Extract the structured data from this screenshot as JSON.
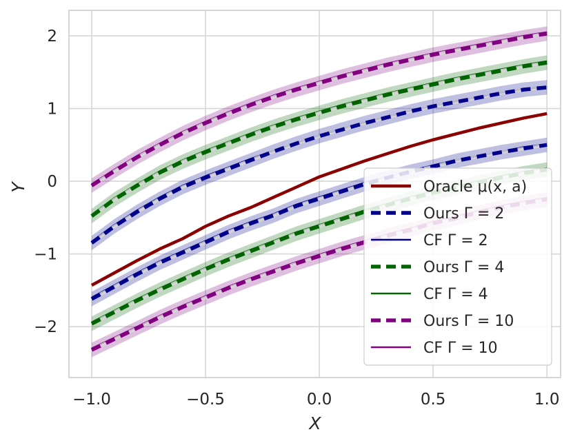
{
  "chart_data": {
    "type": "line",
    "title": "",
    "xlabel": "X",
    "ylabel": "Y",
    "xlim": [
      -1.1,
      1.06
    ],
    "ylim": [
      -2.7,
      2.35
    ],
    "grid": true,
    "xticks": [
      -1.0,
      -0.5,
      0.0,
      0.5,
      1.0
    ],
    "xtick_labels": [
      "−1.0",
      "−0.5",
      "0.0",
      "0.5",
      "1.0"
    ],
    "yticks": [
      -2,
      -1,
      0,
      1,
      2
    ],
    "ytick_labels": [
      "−2",
      "−1",
      "0",
      "1",
      "2"
    ],
    "x": [
      -1.0,
      -0.9,
      -0.8,
      -0.7,
      -0.6,
      -0.5,
      -0.4,
      -0.3,
      -0.2,
      -0.1,
      0.0,
      0.1,
      0.2,
      0.3,
      0.4,
      0.5,
      0.6,
      0.7,
      0.8,
      0.9,
      1.0
    ],
    "legend_position": "right",
    "series": [
      {
        "name": "Oracle μ(x, a)",
        "legend_label": "Oracle μ(x, a)",
        "role": "oracle",
        "color": "#8b0000",
        "style": "solid",
        "values": [
          -1.43,
          -1.26,
          -1.09,
          -0.93,
          -0.79,
          -0.62,
          -0.48,
          -0.36,
          -0.22,
          -0.08,
          0.06,
          0.17,
          0.28,
          0.38,
          0.48,
          0.57,
          0.65,
          0.73,
          0.8,
          0.87,
          0.93
        ]
      },
      {
        "name": "Ours Γ = 2 upper",
        "legend_label": "Ours Γ = 2",
        "role": "ours",
        "color": "#00008b",
        "style": "dashed",
        "values": [
          -0.85,
          -0.62,
          -0.42,
          -0.24,
          -0.08,
          0.05,
          0.17,
          0.29,
          0.41,
          0.52,
          0.62,
          0.71,
          0.8,
          0.88,
          0.96,
          1.03,
          1.09,
          1.15,
          1.21,
          1.26,
          1.29
        ]
      },
      {
        "name": "CF Γ = 2 upper",
        "legend_label": "CF Γ = 2",
        "role": "cf",
        "color": "#00008b",
        "style": "solid",
        "values": [
          -0.83,
          -0.6,
          -0.4,
          -0.22,
          -0.06,
          0.07,
          0.19,
          0.31,
          0.42,
          0.53,
          0.63,
          0.72,
          0.81,
          0.89,
          0.97,
          1.04,
          1.1,
          1.16,
          1.22,
          1.27,
          1.3
        ]
      },
      {
        "name": "Ours Γ = 2 lower",
        "legend_label": "",
        "role": "ours",
        "color": "#00008b",
        "style": "dashed",
        "values": [
          -1.62,
          -1.45,
          -1.28,
          -1.12,
          -0.98,
          -0.84,
          -0.7,
          -0.58,
          -0.47,
          -0.34,
          -0.24,
          -0.14,
          -0.04,
          0.05,
          0.13,
          0.2,
          0.28,
          0.34,
          0.4,
          0.45,
          0.5
        ]
      },
      {
        "name": "CF Γ = 2 lower",
        "legend_label": "",
        "role": "cf",
        "color": "#00008b",
        "style": "solid",
        "values": [
          -1.6,
          -1.43,
          -1.26,
          -1.1,
          -0.96,
          -0.82,
          -0.68,
          -0.56,
          -0.45,
          -0.32,
          -0.22,
          -0.12,
          -0.02,
          0.06,
          0.14,
          0.22,
          0.29,
          0.35,
          0.41,
          0.47,
          0.51
        ]
      },
      {
        "name": "Ours Γ = 4 upper",
        "legend_label": "Ours Γ = 4",
        "role": "ours",
        "color": "#006400",
        "style": "dashed",
        "values": [
          -0.48,
          -0.25,
          -0.06,
          0.12,
          0.27,
          0.4,
          0.52,
          0.64,
          0.75,
          0.85,
          0.94,
          1.03,
          1.11,
          1.19,
          1.26,
          1.33,
          1.4,
          1.46,
          1.52,
          1.58,
          1.63
        ]
      },
      {
        "name": "CF Γ = 4 upper",
        "legend_label": "CF Γ = 4",
        "role": "cf",
        "color": "#006400",
        "style": "solid",
        "values": [
          -0.46,
          -0.23,
          -0.04,
          0.14,
          0.29,
          0.42,
          0.54,
          0.66,
          0.77,
          0.87,
          0.96,
          1.05,
          1.13,
          1.21,
          1.28,
          1.35,
          1.42,
          1.48,
          1.54,
          1.6,
          1.65
        ]
      },
      {
        "name": "Ours Γ = 4 lower",
        "legend_label": "",
        "role": "ours",
        "color": "#006400",
        "style": "dashed",
        "values": [
          -1.96,
          -1.8,
          -1.64,
          -1.49,
          -1.35,
          -1.21,
          -1.08,
          -0.96,
          -0.84,
          -0.72,
          -0.62,
          -0.52,
          -0.42,
          -0.33,
          -0.24,
          -0.16,
          -0.09,
          -0.02,
          0.05,
          0.11,
          0.16
        ]
      },
      {
        "name": "CF Γ = 4 lower",
        "legend_label": "",
        "role": "cf",
        "color": "#006400",
        "style": "solid",
        "values": [
          -1.94,
          -1.78,
          -1.62,
          -1.47,
          -1.33,
          -1.19,
          -1.06,
          -0.94,
          -0.82,
          -0.7,
          -0.6,
          -0.5,
          -0.4,
          -0.31,
          -0.22,
          -0.14,
          -0.07,
          0.0,
          0.07,
          0.13,
          0.18
        ]
      },
      {
        "name": "Ours Γ = 10 upper",
        "legend_label": "Ours Γ = 10",
        "role": "ours",
        "color": "#800080",
        "style": "dashed",
        "values": [
          -0.06,
          0.14,
          0.33,
          0.5,
          0.66,
          0.8,
          0.93,
          1.05,
          1.16,
          1.26,
          1.35,
          1.44,
          1.52,
          1.6,
          1.67,
          1.74,
          1.8,
          1.86,
          1.92,
          1.98,
          2.03
        ]
      },
      {
        "name": "CF Γ = 10 upper",
        "legend_label": "CF Γ = 10",
        "role": "cf",
        "color": "#800080",
        "style": "solid",
        "values": [
          -0.04,
          0.16,
          0.35,
          0.52,
          0.68,
          0.82,
          0.95,
          1.07,
          1.18,
          1.28,
          1.37,
          1.46,
          1.54,
          1.62,
          1.69,
          1.76,
          1.82,
          1.88,
          1.94,
          2.0,
          2.05
        ]
      },
      {
        "name": "Ours Γ = 10 lower",
        "legend_label": "",
        "role": "ours",
        "color": "#800080",
        "style": "dashed",
        "values": [
          -2.32,
          -2.17,
          -2.02,
          -1.87,
          -1.73,
          -1.6,
          -1.47,
          -1.35,
          -1.24,
          -1.13,
          -1.03,
          -0.93,
          -0.84,
          -0.75,
          -0.67,
          -0.58,
          -0.51,
          -0.43,
          -0.36,
          -0.3,
          -0.25
        ]
      },
      {
        "name": "CF Γ = 10 lower",
        "legend_label": "",
        "role": "cf",
        "color": "#800080",
        "style": "solid",
        "values": [
          -2.3,
          -2.15,
          -2.0,
          -1.85,
          -1.71,
          -1.58,
          -1.45,
          -1.33,
          -1.22,
          -1.11,
          -1.01,
          -0.91,
          -0.82,
          -0.73,
          -0.65,
          -0.56,
          -0.49,
          -0.41,
          -0.34,
          -0.28,
          -0.23
        ]
      }
    ]
  }
}
